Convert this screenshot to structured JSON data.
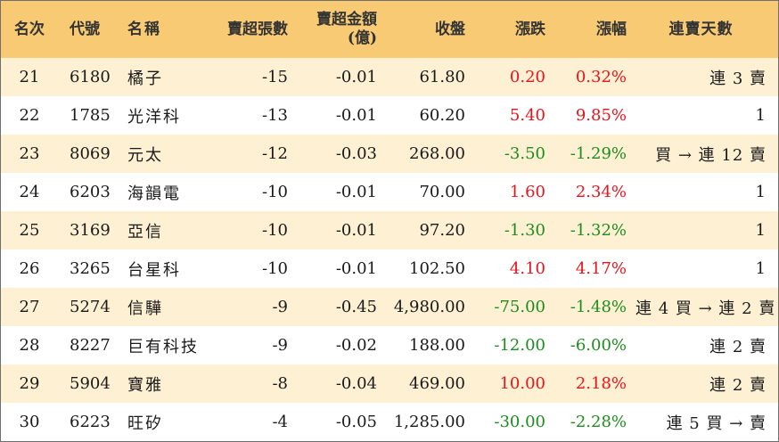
{
  "headers": {
    "rank": "名次",
    "code": "代號",
    "name": "名稱",
    "net_sell_lots": "賣超張數",
    "net_sell_amount_l1": "賣超金額",
    "net_sell_amount_l2": "(億)",
    "close": "收盤",
    "change": "漲跌",
    "change_pct": "漲幅",
    "consecutive": "連賣天數"
  },
  "colors": {
    "header_bg": "#f9ca74",
    "stripe_bg": "#fdf0d3",
    "up": "#e8141c",
    "down": "#1f8c1f"
  },
  "rows": [
    {
      "rank": "21",
      "code": "6180",
      "name": "橘子",
      "net_sell_lots": "-15",
      "net_sell_amount": "-0.01",
      "close": "61.80",
      "change": "0.20",
      "change_pct": "0.32%",
      "direction": "up",
      "consecutive": "連 3 賣"
    },
    {
      "rank": "22",
      "code": "1785",
      "name": "光洋科",
      "net_sell_lots": "-13",
      "net_sell_amount": "-0.01",
      "close": "60.20",
      "change": "5.40",
      "change_pct": "9.85%",
      "direction": "up",
      "consecutive": "1"
    },
    {
      "rank": "23",
      "code": "8069",
      "name": "元太",
      "net_sell_lots": "-12",
      "net_sell_amount": "-0.03",
      "close": "268.00",
      "change": "-3.50",
      "change_pct": "-1.29%",
      "direction": "down",
      "consecutive": "買 → 連 12 賣"
    },
    {
      "rank": "24",
      "code": "6203",
      "name": "海韻電",
      "net_sell_lots": "-10",
      "net_sell_amount": "-0.01",
      "close": "70.00",
      "change": "1.60",
      "change_pct": "2.34%",
      "direction": "up",
      "consecutive": "1"
    },
    {
      "rank": "25",
      "code": "3169",
      "name": "亞信",
      "net_sell_lots": "-10",
      "net_sell_amount": "-0.01",
      "close": "97.20",
      "change": "-1.30",
      "change_pct": "-1.32%",
      "direction": "down",
      "consecutive": "1"
    },
    {
      "rank": "26",
      "code": "3265",
      "name": "台星科",
      "net_sell_lots": "-10",
      "net_sell_amount": "-0.01",
      "close": "102.50",
      "change": "4.10",
      "change_pct": "4.17%",
      "direction": "up",
      "consecutive": "1"
    },
    {
      "rank": "27",
      "code": "5274",
      "name": "信驊",
      "net_sell_lots": "-9",
      "net_sell_amount": "-0.45",
      "close": "4,980.00",
      "change": "-75.00",
      "change_pct": "-1.48%",
      "direction": "down",
      "consecutive": "連 4 買 → 連 2 賣"
    },
    {
      "rank": "28",
      "code": "8227",
      "name": "巨有科技",
      "net_sell_lots": "-9",
      "net_sell_amount": "-0.02",
      "close": "188.00",
      "change": "-12.00",
      "change_pct": "-6.00%",
      "direction": "down",
      "consecutive": "連 2 賣"
    },
    {
      "rank": "29",
      "code": "5904",
      "name": "寶雅",
      "net_sell_lots": "-8",
      "net_sell_amount": "-0.04",
      "close": "469.00",
      "change": "10.00",
      "change_pct": "2.18%",
      "direction": "up",
      "consecutive": "連 2 賣"
    },
    {
      "rank": "30",
      "code": "6223",
      "name": "旺矽",
      "net_sell_lots": "-4",
      "net_sell_amount": "-0.05",
      "close": "1,285.00",
      "change": "-30.00",
      "change_pct": "-2.28%",
      "direction": "down",
      "consecutive": "連 5 買 → 賣"
    }
  ]
}
